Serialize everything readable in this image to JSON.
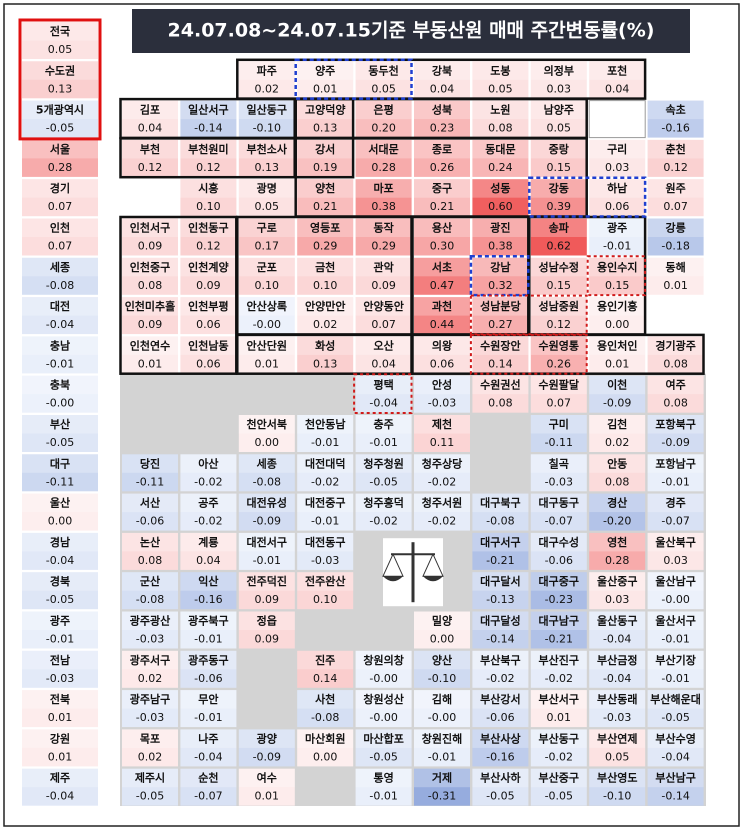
{
  "title": "24.07.08~24.07.15기준 부동산원 매매 주간변동률(%)",
  "left_column": [
    {
      "name": "전국",
      "value": "0.05"
    },
    {
      "name": "수도권",
      "value": "0.13"
    },
    {
      "name": "5개광역시",
      "value": "-0.05"
    },
    {
      "name": "서울",
      "value": "0.28"
    },
    {
      "name": "경기",
      "value": "0.07"
    },
    {
      "name": "인천",
      "value": "0.07"
    },
    {
      "name": "세종",
      "value": "-0.08"
    },
    {
      "name": "대전",
      "value": "-0.04"
    },
    {
      "name": "충남",
      "value": "-0.01"
    },
    {
      "name": "충북",
      "value": "-0.00"
    },
    {
      "name": "부산",
      "value": "-0.05"
    },
    {
      "name": "대구",
      "value": "-0.11"
    },
    {
      "name": "울산",
      "value": "0.00"
    },
    {
      "name": "경남",
      "value": "-0.04"
    },
    {
      "name": "경북",
      "value": "-0.05"
    },
    {
      "name": "광주",
      "value": "-0.01"
    },
    {
      "name": "전남",
      "value": "-0.03"
    },
    {
      "name": "전북",
      "value": "0.01"
    },
    {
      "name": "강원",
      "value": "0.01"
    },
    {
      "name": "제주",
      "value": "-0.04"
    }
  ],
  "grid": [
    [
      null,
      null,
      {
        "name": "파주",
        "value": "0.02"
      },
      {
        "name": "양주",
        "value": "0.01"
      },
      {
        "name": "동두천",
        "value": "0.05"
      },
      {
        "name": "강북",
        "value": "0.04"
      },
      {
        "name": "도봉",
        "value": "0.05"
      },
      {
        "name": "의정부",
        "value": "0.03"
      },
      {
        "name": "포천",
        "value": "0.04"
      },
      null
    ],
    [
      {
        "name": "김포",
        "value": "0.04"
      },
      {
        "name": "일산서구",
        "value": "-0.14"
      },
      {
        "name": "일산동구",
        "value": "-0.10"
      },
      {
        "name": "고양덕양",
        "value": "0.13"
      },
      {
        "name": "은평",
        "value": "0.20"
      },
      {
        "name": "성북",
        "value": "0.23"
      },
      {
        "name": "노원",
        "value": "0.08"
      },
      {
        "name": "남양주",
        "value": "0.05"
      },
      null,
      {
        "name": "속초",
        "value": "-0.16"
      }
    ],
    [
      {
        "name": "부천",
        "value": "0.12"
      },
      {
        "name": "부천원미",
        "value": "0.12"
      },
      {
        "name": "부천소사",
        "value": "0.13"
      },
      {
        "name": "강서",
        "value": "0.19"
      },
      {
        "name": "서대문",
        "value": "0.28"
      },
      {
        "name": "종로",
        "value": "0.26"
      },
      {
        "name": "동대문",
        "value": "0.24"
      },
      {
        "name": "중랑",
        "value": "0.15"
      },
      {
        "name": "구리",
        "value": "0.03"
      },
      {
        "name": "춘천",
        "value": "0.12"
      }
    ],
    [
      null,
      {
        "name": "시흥",
        "value": "0.10"
      },
      {
        "name": "광명",
        "value": "0.05"
      },
      {
        "name": "양천",
        "value": "0.21"
      },
      {
        "name": "마포",
        "value": "0.38"
      },
      {
        "name": "중구",
        "value": "0.21"
      },
      {
        "name": "성동",
        "value": "0.60"
      },
      {
        "name": "강동",
        "value": "0.39"
      },
      {
        "name": "하남",
        "value": "0.06"
      },
      {
        "name": "원주",
        "value": "0.07"
      }
    ],
    [
      {
        "name": "인천서구",
        "value": "0.09"
      },
      {
        "name": "인천동구",
        "value": "0.12"
      },
      {
        "name": "구로",
        "value": "0.17"
      },
      {
        "name": "영등포",
        "value": "0.29"
      },
      {
        "name": "동작",
        "value": "0.29"
      },
      {
        "name": "용산",
        "value": "0.30"
      },
      {
        "name": "광진",
        "value": "0.38"
      },
      {
        "name": "송파",
        "value": "0.62"
      },
      {
        "name": "광주",
        "value": "-0.01"
      },
      {
        "name": "강릉",
        "value": "-0.18"
      }
    ],
    [
      {
        "name": "인천중구",
        "value": "0.08"
      },
      {
        "name": "인천계양",
        "value": "0.09"
      },
      {
        "name": "군포",
        "value": "0.10"
      },
      {
        "name": "금천",
        "value": "0.10"
      },
      {
        "name": "관악",
        "value": "0.09"
      },
      {
        "name": "서초",
        "value": "0.47"
      },
      {
        "name": "강남",
        "value": "0.32"
      },
      {
        "name": "성남수정",
        "value": "0.15"
      },
      {
        "name": "용인수지",
        "value": "0.15"
      },
      {
        "name": "동해",
        "value": "0.01"
      }
    ],
    [
      {
        "name": "인천미추홀",
        "value": "0.09"
      },
      {
        "name": "인천부평",
        "value": "0.06"
      },
      {
        "name": "안산상록",
        "value": "-0.00"
      },
      {
        "name": "안양만안",
        "value": "0.02"
      },
      {
        "name": "안양동안",
        "value": "0.07"
      },
      {
        "name": "과천",
        "value": "0.44"
      },
      {
        "name": "성남분당",
        "value": "0.27"
      },
      {
        "name": "성남중원",
        "value": "0.12"
      },
      {
        "name": "용인기흥",
        "value": "0.00"
      },
      null
    ],
    [
      {
        "name": "인천연수",
        "value": "0.01"
      },
      {
        "name": "인천남동",
        "value": "0.06"
      },
      {
        "name": "안산단원",
        "value": "0.01"
      },
      {
        "name": "화성",
        "value": "0.13"
      },
      {
        "name": "오산",
        "value": "0.04"
      },
      {
        "name": "의왕",
        "value": "0.06"
      },
      {
        "name": "수원장안",
        "value": "0.14"
      },
      {
        "name": "수원영통",
        "value": "0.26"
      },
      {
        "name": "용인처인",
        "value": "0.01"
      },
      {
        "name": "경기광주",
        "value": "0.08"
      }
    ],
    [
      null,
      null,
      null,
      null,
      {
        "name": "평택",
        "value": "-0.04"
      },
      {
        "name": "안성",
        "value": "-0.03"
      },
      {
        "name": "수원권선",
        "value": "0.08"
      },
      {
        "name": "수원팔달",
        "value": "0.07"
      },
      {
        "name": "이천",
        "value": "-0.09"
      },
      {
        "name": "여주",
        "value": "0.08"
      }
    ],
    [
      null,
      null,
      {
        "name": "천안서북",
        "value": "0.00"
      },
      {
        "name": "천안동남",
        "value": "-0.01"
      },
      {
        "name": "충주",
        "value": "-0.01"
      },
      {
        "name": "제천",
        "value": "0.11"
      },
      null,
      {
        "name": "구미",
        "value": "-0.11"
      },
      {
        "name": "김천",
        "value": "0.02"
      },
      {
        "name": "포항북구",
        "value": "-0.09"
      }
    ],
    [
      {
        "name": "당진",
        "value": "-0.11"
      },
      {
        "name": "아산",
        "value": "-0.02"
      },
      {
        "name": "세종",
        "value": "-0.08"
      },
      {
        "name": "대전대덕",
        "value": "-0.02"
      },
      {
        "name": "청주청원",
        "value": "-0.05"
      },
      {
        "name": "청주상당",
        "value": "-0.02"
      },
      null,
      {
        "name": "칠곡",
        "value": "-0.03"
      },
      {
        "name": "안동",
        "value": "0.08"
      },
      {
        "name": "포항남구",
        "value": "-0.01"
      }
    ],
    [
      {
        "name": "서산",
        "value": "-0.06"
      },
      {
        "name": "공주",
        "value": "-0.02"
      },
      {
        "name": "대전유성",
        "value": "-0.09"
      },
      {
        "name": "대전중구",
        "value": "-0.01"
      },
      {
        "name": "청주흥덕",
        "value": "-0.02"
      },
      {
        "name": "청주서원",
        "value": "-0.02"
      },
      {
        "name": "대구북구",
        "value": "-0.08"
      },
      {
        "name": "대구동구",
        "value": "-0.07"
      },
      {
        "name": "경산",
        "value": "-0.20"
      },
      {
        "name": "경주",
        "value": "-0.07"
      }
    ],
    [
      {
        "name": "논산",
        "value": "0.08"
      },
      {
        "name": "계룡",
        "value": "0.04"
      },
      {
        "name": "대전서구",
        "value": "-0.01"
      },
      {
        "name": "대전동구",
        "value": "-0.03"
      },
      null,
      null,
      {
        "name": "대구서구",
        "value": "-0.21"
      },
      {
        "name": "대구수성",
        "value": "-0.06"
      },
      {
        "name": "영천",
        "value": "0.28"
      },
      {
        "name": "울산북구",
        "value": "0.03"
      }
    ],
    [
      {
        "name": "군산",
        "value": "-0.08"
      },
      {
        "name": "익산",
        "value": "-0.16"
      },
      {
        "name": "전주덕진",
        "value": "0.09"
      },
      {
        "name": "전주완산",
        "value": "0.10"
      },
      null,
      null,
      {
        "name": "대구달서",
        "value": "-0.13"
      },
      {
        "name": "대구중구",
        "value": "-0.23"
      },
      {
        "name": "울산중구",
        "value": "0.03"
      },
      {
        "name": "울산남구",
        "value": "-0.00"
      }
    ],
    [
      {
        "name": "광주광산",
        "value": "-0.03"
      },
      {
        "name": "광주북구",
        "value": "-0.01"
      },
      {
        "name": "정읍",
        "value": "0.09"
      },
      null,
      null,
      {
        "name": "밀양",
        "value": "0.00"
      },
      {
        "name": "대구달성",
        "value": "-0.14"
      },
      {
        "name": "대구남구",
        "value": "-0.21"
      },
      {
        "name": "울산동구",
        "value": "-0.04"
      },
      {
        "name": "울산서구",
        "value": "-0.01"
      }
    ],
    [
      {
        "name": "광주서구",
        "value": "0.02"
      },
      {
        "name": "광주동구",
        "value": "-0.06"
      },
      null,
      {
        "name": "진주",
        "value": "0.14"
      },
      {
        "name": "창원의창",
        "value": "-0.00"
      },
      {
        "name": "양산",
        "value": "-0.10"
      },
      {
        "name": "부산북구",
        "value": "-0.02"
      },
      {
        "name": "부산진구",
        "value": "-0.02"
      },
      {
        "name": "부산금정",
        "value": "-0.04"
      },
      {
        "name": "부산기장",
        "value": "-0.01"
      }
    ],
    [
      {
        "name": "광주남구",
        "value": "-0.03"
      },
      {
        "name": "무안",
        "value": "-0.01"
      },
      null,
      {
        "name": "사천",
        "value": "-0.08"
      },
      {
        "name": "창원성산",
        "value": "-0.00"
      },
      {
        "name": "김해",
        "value": "-0.00"
      },
      {
        "name": "부산강서",
        "value": "-0.06"
      },
      {
        "name": "부산서구",
        "value": "0.01"
      },
      {
        "name": "부산동래",
        "value": "-0.03"
      },
      {
        "name": "부산해운대",
        "value": "-0.05"
      }
    ],
    [
      {
        "name": "목포",
        "value": "0.02"
      },
      {
        "name": "나주",
        "value": "-0.04"
      },
      {
        "name": "광양",
        "value": "-0.09"
      },
      {
        "name": "마산회원",
        "value": "0.00"
      },
      {
        "name": "마산합포",
        "value": "-0.05"
      },
      {
        "name": "창원진해",
        "value": "-0.01"
      },
      {
        "name": "부산사상",
        "value": "-0.16"
      },
      {
        "name": "부산동구",
        "value": "-0.02"
      },
      {
        "name": "부산연제",
        "value": "0.05"
      },
      {
        "name": "부산수영",
        "value": "-0.04"
      }
    ],
    [
      {
        "name": "제주시",
        "value": "-0.05"
      },
      {
        "name": "순천",
        "value": "-0.07"
      },
      {
        "name": "여수",
        "value": "0.01"
      },
      null,
      {
        "name": "통영",
        "value": "-0.01"
      },
      {
        "name": "거제",
        "value": "-0.31"
      },
      {
        "name": "부산사하",
        "value": "-0.05"
      },
      {
        "name": "부산중구",
        "value": "-0.05"
      },
      {
        "name": "부산영도",
        "value": "-0.10"
      },
      {
        "name": "부산남구",
        "value": "-0.14"
      }
    ]
  ]
}
